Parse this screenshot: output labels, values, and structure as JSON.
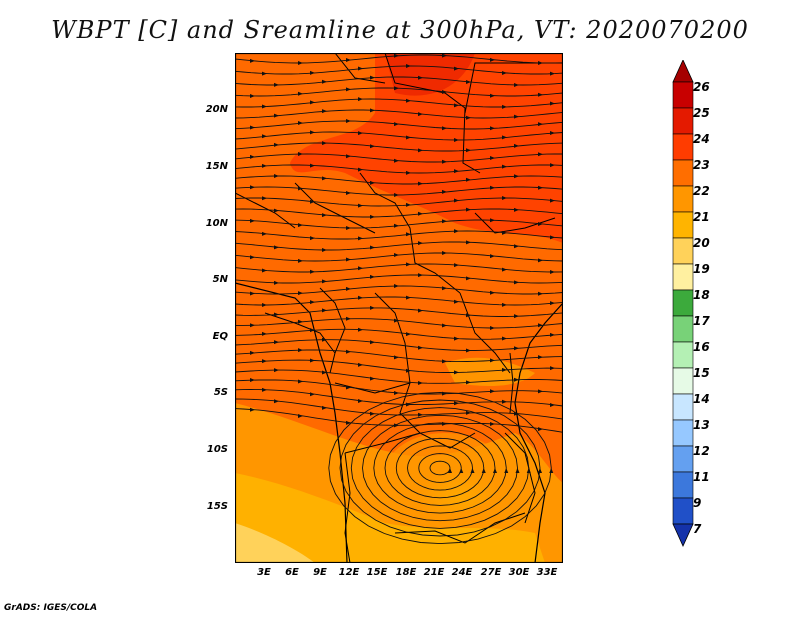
{
  "title": "WBPT [C] and Sreamline at 300hPa, VT: 2020070200",
  "credit": "GrADS: IGES/COLA",
  "map": {
    "variable": "WBPT [C]",
    "level": "300hPa",
    "valid_time": "2020070200",
    "lat_labels": [
      "20N",
      "15N",
      "10N",
      "5N",
      "EQ",
      "5S",
      "10S",
      "15S"
    ],
    "lon_labels": [
      "3E",
      "6E",
      "9E",
      "12E",
      "15E",
      "18E",
      "21E",
      "24E",
      "27E",
      "30E",
      "33E"
    ]
  },
  "colorbar": {
    "labels": [
      "26",
      "25",
      "24",
      "23",
      "22",
      "21",
      "20",
      "19",
      "18",
      "17",
      "16",
      "15",
      "14",
      "13",
      "12",
      "11",
      "9",
      "7"
    ],
    "colors": [
      "#a50000",
      "#c80000",
      "#e41a00",
      "#ff3c00",
      "#ff6e00",
      "#ff9600",
      "#ffb400",
      "#ffd25a",
      "#fff0a0",
      "#3caa3c",
      "#78d278",
      "#b4f0b4",
      "#e6fae6",
      "#c8e6ff",
      "#96c8ff",
      "#64a0f0",
      "#3c78dc",
      "#2050c8",
      "#1432aa"
    ]
  }
}
